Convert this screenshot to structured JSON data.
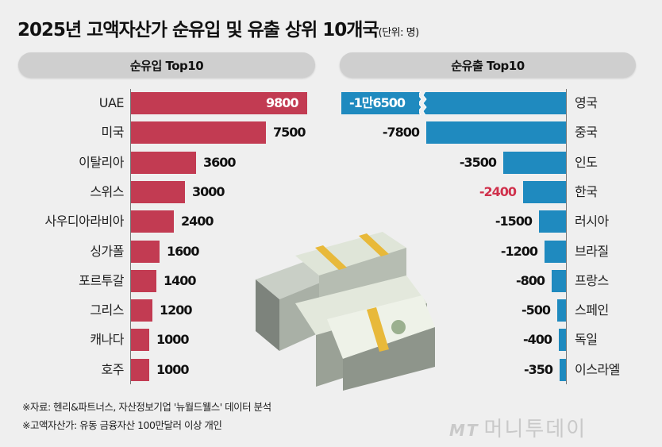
{
  "title": "2025년 고액자산가 순유입 및 유출 상위 10개국",
  "unit": "(단위: 명)",
  "headers": {
    "inflow": "순유입 Top10",
    "outflow": "순유출 Top10"
  },
  "inflow": [
    {
      "country": "UAE",
      "value": 9800,
      "label": "9800"
    },
    {
      "country": "미국",
      "value": 7500,
      "label": "7500"
    },
    {
      "country": "이탈리아",
      "value": 3600,
      "label": "3600"
    },
    {
      "country": "스위스",
      "value": 3000,
      "label": "3000"
    },
    {
      "country": "사우디아라비아",
      "value": 2400,
      "label": "2400"
    },
    {
      "country": "싱가폴",
      "value": 1600,
      "label": "1600"
    },
    {
      "country": "포르투갈",
      "value": 1400,
      "label": "1400"
    },
    {
      "country": "그리스",
      "value": 1200,
      "label": "1200"
    },
    {
      "country": "캐나다",
      "value": 1000,
      "label": "1000"
    },
    {
      "country": "호주",
      "value": 1000,
      "label": "1000"
    }
  ],
  "outflow": [
    {
      "country": "영국",
      "value": -16500,
      "label": "-1만6500"
    },
    {
      "country": "중국",
      "value": -7800,
      "label": "-7800"
    },
    {
      "country": "인도",
      "value": -3500,
      "label": "-3500"
    },
    {
      "country": "한국",
      "value": -2400,
      "label": "-2400"
    },
    {
      "country": "러시아",
      "value": -1500,
      "label": "-1500"
    },
    {
      "country": "브라질",
      "value": -1200,
      "label": "-1200"
    },
    {
      "country": "프랑스",
      "value": -800,
      "label": "-800"
    },
    {
      "country": "스페인",
      "value": -500,
      "label": "-500"
    },
    {
      "country": "독일",
      "value": -400,
      "label": "-400"
    },
    {
      "country": "이스라엘",
      "value": -350,
      "label": "-350"
    }
  ],
  "notes": [
    "※자료: 헨리&파트너스, 자산정보기업 '뉴월드웰스' 데이터 분석",
    "※고액자산가: 유동 금융자산 100만달러 이상 개인"
  ],
  "logo": {
    "mark": "MT",
    "text": "머니투데이"
  },
  "colors": {
    "inflow": "#c23b52",
    "outflow": "#1f8abf",
    "highlight": "#d0314c",
    "pill": "#cfcfcf"
  },
  "chart_data": [
    {
      "type": "bar",
      "orientation": "horizontal",
      "title": "순유입 Top10",
      "categories": [
        "UAE",
        "미국",
        "이탈리아",
        "스위스",
        "사우디아라비아",
        "싱가폴",
        "포르투갈",
        "그리스",
        "캐나다",
        "호주"
      ],
      "values": [
        9800,
        7500,
        3600,
        3000,
        2400,
        1600,
        1400,
        1200,
        1000,
        1000
      ],
      "unit": "명",
      "color": "#c23b52",
      "grid": false
    },
    {
      "type": "bar",
      "orientation": "horizontal",
      "title": "순유출 Top10",
      "categories": [
        "영국",
        "중국",
        "인도",
        "한국",
        "러시아",
        "브라질",
        "프랑스",
        "스페인",
        "독일",
        "이스라엘"
      ],
      "values": [
        -16500,
        -7800,
        -3500,
        -2400,
        -1500,
        -1200,
        -800,
        -500,
        -400,
        -350
      ],
      "unit": "명",
      "color": "#1f8abf",
      "highlight": {
        "category": "한국",
        "label_color": "#d0314c"
      },
      "annotations": [
        "영국 bar truncated with axis break"
      ],
      "grid": false
    }
  ]
}
